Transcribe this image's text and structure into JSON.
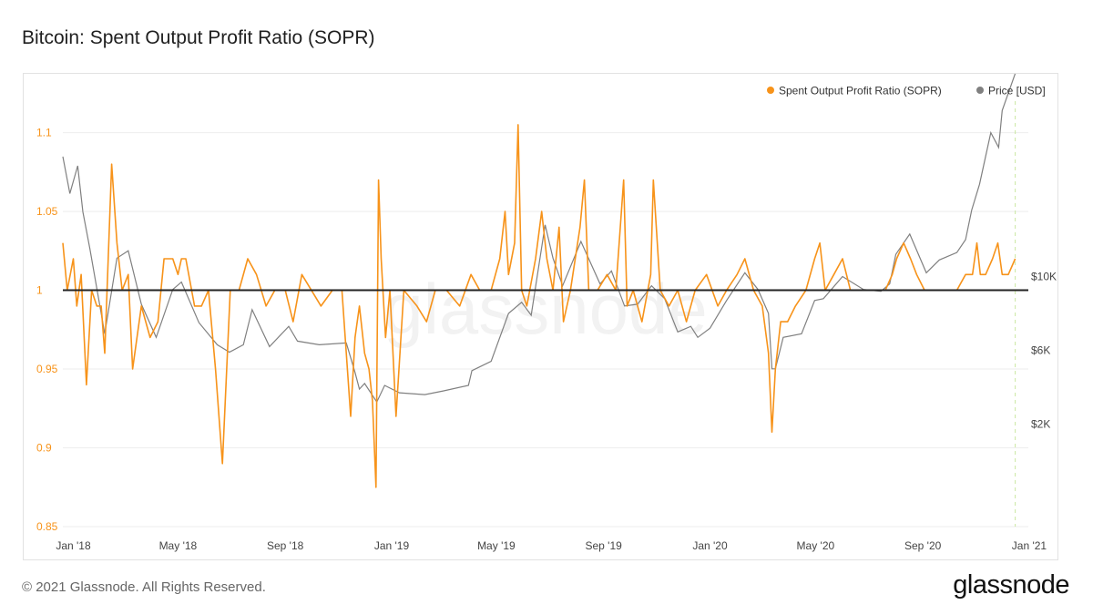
{
  "page": {
    "title": "Bitcoin: Spent Output Profit Ratio (SOPR)",
    "footer": "© 2021 Glassnode. All Rights Reserved.",
    "logo": "glassnode",
    "watermark": "glassnode"
  },
  "chart_data": {
    "type": "line",
    "title": "Bitcoin: Spent Output Profit Ratio (SOPR)",
    "legend_position": "top-right",
    "grid": true,
    "x_ticks": [
      "Jan '18",
      "May '18",
      "Sep '18",
      "Jan '19",
      "May '19",
      "Sep '19",
      "Jan '20",
      "May '20",
      "Sep '20",
      "Jan '21"
    ],
    "x_range": [
      "2017-12-20",
      "2020-12-31"
    ],
    "y_left": {
      "ticks": [
        "0.85",
        "0.9",
        "0.95",
        "1",
        "1.05",
        "1.1"
      ],
      "range": [
        0.85,
        1.12
      ],
      "color": "#f7931a"
    },
    "y_right": {
      "ticks": [
        "$2K",
        "$6K",
        "$10K"
      ],
      "scale": "linear",
      "color": "#555555"
    },
    "reference_line": {
      "axis": "left",
      "value": 1
    },
    "highlight_date": "2020-12-16",
    "series": [
      {
        "name": "Spent Output Profit Ratio (SOPR)",
        "axis": "left",
        "color": "#f7931a",
        "points": [
          [
            "2017-12-20",
            1.03
          ],
          [
            "2017-12-25",
            1.0
          ],
          [
            "2018-01-01",
            1.02
          ],
          [
            "2018-01-05",
            0.99
          ],
          [
            "2018-01-10",
            1.01
          ],
          [
            "2018-01-16",
            0.94
          ],
          [
            "2018-01-22",
            1.0
          ],
          [
            "2018-01-28",
            0.99
          ],
          [
            "2018-02-02",
            0.99
          ],
          [
            "2018-02-06",
            0.96
          ],
          [
            "2018-02-10",
            1.02
          ],
          [
            "2018-02-14",
            1.08
          ],
          [
            "2018-02-20",
            1.03
          ],
          [
            "2018-02-26",
            1.0
          ],
          [
            "2018-03-05",
            1.01
          ],
          [
            "2018-03-10",
            0.95
          ],
          [
            "2018-03-20",
            0.99
          ],
          [
            "2018-03-30",
            0.97
          ],
          [
            "2018-04-08",
            0.98
          ],
          [
            "2018-04-15",
            1.02
          ],
          [
            "2018-04-25",
            1.02
          ],
          [
            "2018-05-01",
            1.01
          ],
          [
            "2018-05-05",
            1.02
          ],
          [
            "2018-05-10",
            1.02
          ],
          [
            "2018-05-20",
            0.99
          ],
          [
            "2018-05-28",
            0.99
          ],
          [
            "2018-06-05",
            1.0
          ],
          [
            "2018-06-13",
            0.95
          ],
          [
            "2018-06-21",
            0.89
          ],
          [
            "2018-06-30",
            1.0
          ],
          [
            "2018-07-10",
            1.0
          ],
          [
            "2018-07-20",
            1.02
          ],
          [
            "2018-07-30",
            1.01
          ],
          [
            "2018-08-10",
            0.99
          ],
          [
            "2018-08-20",
            1.0
          ],
          [
            "2018-09-01",
            1.0
          ],
          [
            "2018-09-10",
            0.98
          ],
          [
            "2018-09-20",
            1.01
          ],
          [
            "2018-10-01",
            1.0
          ],
          [
            "2018-10-12",
            0.99
          ],
          [
            "2018-10-25",
            1.0
          ],
          [
            "2018-11-05",
            1.0
          ],
          [
            "2018-11-15",
            0.92
          ],
          [
            "2018-11-20",
            0.97
          ],
          [
            "2018-11-25",
            0.99
          ],
          [
            "2018-12-01",
            0.96
          ],
          [
            "2018-12-06",
            0.95
          ],
          [
            "2018-12-10",
            0.93
          ],
          [
            "2018-12-14",
            0.875
          ],
          [
            "2018-12-17",
            1.07
          ],
          [
            "2018-12-20",
            1.02
          ],
          [
            "2018-12-25",
            0.97
          ],
          [
            "2018-12-30",
            1.0
          ],
          [
            "2019-01-06",
            0.92
          ],
          [
            "2019-01-15",
            1.0
          ],
          [
            "2019-01-30",
            0.99
          ],
          [
            "2019-02-10",
            0.98
          ],
          [
            "2019-02-20",
            1.0
          ],
          [
            "2019-03-05",
            1.0
          ],
          [
            "2019-03-20",
            0.99
          ],
          [
            "2019-04-02",
            1.01
          ],
          [
            "2019-04-12",
            1.0
          ],
          [
            "2019-04-25",
            1.0
          ],
          [
            "2019-05-05",
            1.02
          ],
          [
            "2019-05-11",
            1.05
          ],
          [
            "2019-05-15",
            1.01
          ],
          [
            "2019-05-22",
            1.03
          ],
          [
            "2019-05-26",
            1.105
          ],
          [
            "2019-05-30",
            1.0
          ],
          [
            "2019-06-05",
            0.99
          ],
          [
            "2019-06-15",
            1.02
          ],
          [
            "2019-06-22",
            1.05
          ],
          [
            "2019-06-28",
            1.02
          ],
          [
            "2019-07-05",
            1.0
          ],
          [
            "2019-07-12",
            1.04
          ],
          [
            "2019-07-17",
            0.98
          ],
          [
            "2019-07-25",
            1.0
          ],
          [
            "2019-08-05",
            1.04
          ],
          [
            "2019-08-10",
            1.07
          ],
          [
            "2019-08-15",
            1.0
          ],
          [
            "2019-08-25",
            1.0
          ],
          [
            "2019-09-05",
            1.01
          ],
          [
            "2019-09-15",
            1.0
          ],
          [
            "2019-09-24",
            1.07
          ],
          [
            "2019-09-28",
            0.99
          ],
          [
            "2019-10-05",
            1.0
          ],
          [
            "2019-10-15",
            0.98
          ],
          [
            "2019-10-25",
            1.01
          ],
          [
            "2019-10-28",
            1.07
          ],
          [
            "2019-11-05",
            1.0
          ],
          [
            "2019-11-15",
            0.99
          ],
          [
            "2019-11-25",
            1.0
          ],
          [
            "2019-12-05",
            0.98
          ],
          [
            "2019-12-15",
            1.0
          ],
          [
            "2019-12-28",
            1.01
          ],
          [
            "2020-01-10",
            0.99
          ],
          [
            "2020-01-20",
            1.0
          ],
          [
            "2020-02-01",
            1.01
          ],
          [
            "2020-02-10",
            1.02
          ],
          [
            "2020-02-20",
            1.0
          ],
          [
            "2020-03-01",
            0.99
          ],
          [
            "2020-03-08",
            0.96
          ],
          [
            "2020-03-12",
            0.91
          ],
          [
            "2020-03-16",
            0.95
          ],
          [
            "2020-03-22",
            0.98
          ],
          [
            "2020-03-30",
            0.98
          ],
          [
            "2020-04-08",
            0.99
          ],
          [
            "2020-04-20",
            1.0
          ],
          [
            "2020-04-30",
            1.02
          ],
          [
            "2020-05-06",
            1.03
          ],
          [
            "2020-05-12",
            1.0
          ],
          [
            "2020-05-22",
            1.01
          ],
          [
            "2020-06-01",
            1.02
          ],
          [
            "2020-06-10",
            1.0
          ],
          [
            "2020-06-20",
            1.0
          ],
          [
            "2020-07-01",
            1.0
          ],
          [
            "2020-07-10",
            1.0
          ],
          [
            "2020-07-20",
            1.0
          ],
          [
            "2020-07-28",
            1.01
          ],
          [
            "2020-08-02",
            1.02
          ],
          [
            "2020-08-10",
            1.03
          ],
          [
            "2020-08-18",
            1.02
          ],
          [
            "2020-08-25",
            1.01
          ],
          [
            "2020-09-03",
            1.0
          ],
          [
            "2020-09-10",
            1.0
          ],
          [
            "2020-09-20",
            1.0
          ],
          [
            "2020-10-01",
            1.0
          ],
          [
            "2020-10-10",
            1.0
          ],
          [
            "2020-10-20",
            1.01
          ],
          [
            "2020-10-28",
            1.01
          ],
          [
            "2020-11-02",
            1.03
          ],
          [
            "2020-11-06",
            1.01
          ],
          [
            "2020-11-12",
            1.01
          ],
          [
            "2020-11-20",
            1.02
          ],
          [
            "2020-11-26",
            1.03
          ],
          [
            "2020-12-01",
            1.01
          ],
          [
            "2020-12-08",
            1.01
          ],
          [
            "2020-12-16",
            1.02
          ]
        ]
      },
      {
        "name": "Price [USD]",
        "axis": "right",
        "color": "#808080",
        "points": [
          [
            "2017-12-20",
            16500
          ],
          [
            "2017-12-28",
            14500
          ],
          [
            "2018-01-06",
            16000
          ],
          [
            "2018-01-12",
            13500
          ],
          [
            "2018-01-20",
            11500
          ],
          [
            "2018-02-06",
            6900
          ],
          [
            "2018-02-20",
            11000
          ],
          [
            "2018-03-05",
            11400
          ],
          [
            "2018-03-20",
            8500
          ],
          [
            "2018-04-06",
            6700
          ],
          [
            "2018-04-25",
            9300
          ],
          [
            "2018-05-05",
            9700
          ],
          [
            "2018-05-25",
            7500
          ],
          [
            "2018-06-15",
            6300
          ],
          [
            "2018-06-29",
            5900
          ],
          [
            "2018-07-15",
            6300
          ],
          [
            "2018-07-25",
            8200
          ],
          [
            "2018-08-14",
            6200
          ],
          [
            "2018-09-05",
            7300
          ],
          [
            "2018-09-15",
            6500
          ],
          [
            "2018-10-10",
            6300
          ],
          [
            "2018-11-10",
            6400
          ],
          [
            "2018-11-20",
            4800
          ],
          [
            "2018-11-25",
            3900
          ],
          [
            "2018-12-01",
            4200
          ],
          [
            "2018-12-15",
            3200
          ],
          [
            "2018-12-24",
            4100
          ],
          [
            "2019-01-10",
            3700
          ],
          [
            "2019-02-08",
            3600
          ],
          [
            "2019-03-01",
            3800
          ],
          [
            "2019-03-30",
            4100
          ],
          [
            "2019-04-03",
            4900
          ],
          [
            "2019-04-25",
            5400
          ],
          [
            "2019-05-15",
            8000
          ],
          [
            "2019-05-30",
            8600
          ],
          [
            "2019-06-10",
            7900
          ],
          [
            "2019-06-26",
            12800
          ],
          [
            "2019-07-05",
            11000
          ],
          [
            "2019-07-16",
            9500
          ],
          [
            "2019-08-06",
            11900
          ],
          [
            "2019-08-28",
            9600
          ],
          [
            "2019-09-10",
            10300
          ],
          [
            "2019-09-25",
            8400
          ],
          [
            "2019-10-10",
            8500
          ],
          [
            "2019-10-26",
            9500
          ],
          [
            "2019-11-10",
            8800
          ],
          [
            "2019-11-25",
            7000
          ],
          [
            "2019-12-10",
            7300
          ],
          [
            "2019-12-18",
            6700
          ],
          [
            "2020-01-01",
            7200
          ],
          [
            "2020-01-20",
            8700
          ],
          [
            "2020-02-10",
            10200
          ],
          [
            "2020-02-25",
            9300
          ],
          [
            "2020-03-08",
            8000
          ],
          [
            "2020-03-12",
            5000
          ],
          [
            "2020-03-16",
            5000
          ],
          [
            "2020-03-25",
            6700
          ],
          [
            "2020-04-15",
            6900
          ],
          [
            "2020-04-30",
            8700
          ],
          [
            "2020-05-10",
            8800
          ],
          [
            "2020-06-01",
            10000
          ],
          [
            "2020-06-25",
            9300
          ],
          [
            "2020-07-15",
            9200
          ],
          [
            "2020-07-25",
            9600
          ],
          [
            "2020-08-01",
            11200
          ],
          [
            "2020-08-17",
            12300
          ],
          [
            "2020-09-05",
            10200
          ],
          [
            "2020-09-20",
            10900
          ],
          [
            "2020-10-10",
            11300
          ],
          [
            "2020-10-20",
            12000
          ],
          [
            "2020-10-27",
            13600
          ],
          [
            "2020-11-05",
            15000
          ],
          [
            "2020-11-18",
            17800
          ],
          [
            "2020-11-27",
            17000
          ],
          [
            "2020-12-01",
            19000
          ],
          [
            "2020-12-16",
            21000
          ],
          [
            "2020-12-22",
            23500
          ],
          [
            "2020-12-27",
            26000
          ],
          [
            "2020-12-31",
            29000
          ]
        ]
      }
    ]
  }
}
